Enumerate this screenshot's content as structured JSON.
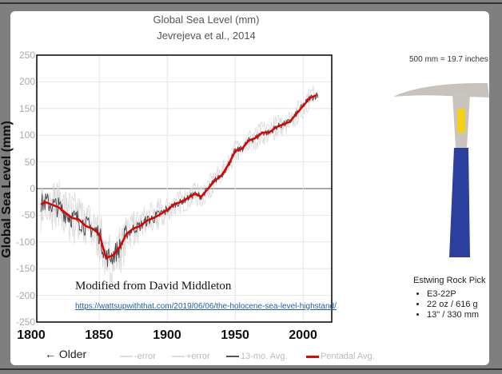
{
  "chart_data": {
    "type": "line",
    "title": "Global Sea Level (mm)",
    "subtitle": "Jevrejeva et al., 2014",
    "ylabel": "Global Sea Level (mm)",
    "xlabel": "",
    "xlim": [
      1804,
      2021
    ],
    "ylim": [
      -250,
      250
    ],
    "yticks": [
      "250",
      "200",
      "150",
      "100",
      "50",
      "0",
      "-50",
      "-100",
      "-150",
      "-200",
      "-250"
    ],
    "xticks": [
      "1800",
      "1850",
      "1900",
      "1950",
      "2000"
    ],
    "legend": [
      "-error",
      "+error",
      "13-mo. Avg.",
      "Pentadal Avg."
    ],
    "legend_placement": "bottom",
    "series": [
      {
        "name": "Pentadal Avg.",
        "color": "#e00000",
        "x": [
          1807,
          1810,
          1815,
          1820,
          1825,
          1830,
          1835,
          1840,
          1845,
          1850,
          1855,
          1860,
          1865,
          1870,
          1875,
          1880,
          1885,
          1890,
          1895,
          1900,
          1905,
          1910,
          1915,
          1920,
          1925,
          1930,
          1935,
          1940,
          1945,
          1950,
          1955,
          1960,
          1965,
          1970,
          1975,
          1980,
          1985,
          1990,
          1995,
          2000,
          2005,
          2010
        ],
        "y": [
          -30,
          -25,
          -30,
          -35,
          -45,
          -55,
          -58,
          -70,
          -75,
          -85,
          -130,
          -125,
          -110,
          -85,
          -75,
          -70,
          -60,
          -55,
          -48,
          -40,
          -30,
          -25,
          -18,
          -10,
          -15,
          0,
          15,
          25,
          45,
          70,
          75,
          90,
          95,
          105,
          105,
          115,
          120,
          125,
          140,
          155,
          170,
          175
        ]
      }
    ]
  },
  "overlay": {
    "credit": "Modified from David Middleton",
    "url": "https://wattsupwiththat.com/2019/06/06/the-holocene-sea-level-highstand/",
    "older": "← Older"
  },
  "side": {
    "scale_note": "500 mm = 19.7 inches",
    "tool_name": "Estwing Rock Pick",
    "specs": [
      "E3-22P",
      "22 oz / 616 g",
      "13\" / 330 mm"
    ]
  }
}
